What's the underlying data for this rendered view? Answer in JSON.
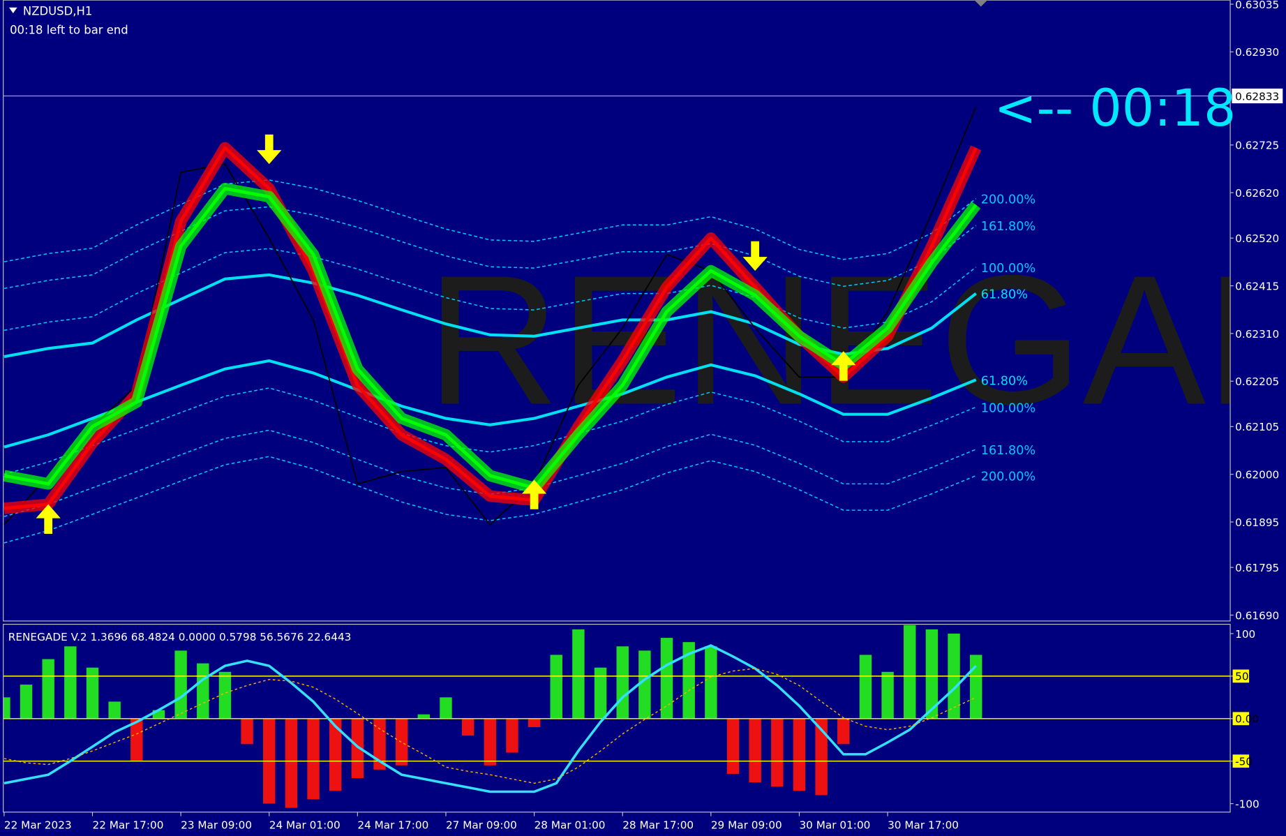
{
  "chart_data": [
    {
      "type": "line",
      "title": "NZDUSD,H1",
      "subtitle": "00:18 left to bar end",
      "annotation": "<-- 00:18",
      "watermark": "RENEGADE",
      "categories": [
        "22 Mar 2023",
        null,
        "22 Mar 17:00",
        null,
        "23 Mar 09:00",
        null,
        "24 Mar 01:00",
        null,
        "24 Mar 17:00",
        null,
        "27 Mar 09:00",
        null,
        "28 Mar 01:00",
        null,
        "28 Mar 17:00",
        null,
        "29 Mar 09:00",
        null,
        "30 Mar 01:00",
        null,
        "30 Mar 17:00",
        null,
        null
      ],
      "ylim": [
        0.61677,
        0.63044
      ],
      "yticks": [
        {
          "value": 0.63035,
          "label": "0.63035"
        },
        {
          "value": 0.6293,
          "label": "0.62930"
        },
        {
          "value": 0.62725,
          "label": "0.62725"
        },
        {
          "value": 0.6262,
          "label": "0.62620"
        },
        {
          "value": 0.6252,
          "label": "0.62520"
        },
        {
          "value": 0.62415,
          "label": "0.62415"
        },
        {
          "value": 0.6231,
          "label": "0.62310"
        },
        {
          "value": 0.62205,
          "label": "0.62205"
        },
        {
          "value": 0.62105,
          "label": "0.62105"
        },
        {
          "value": 0.62,
          "label": "0.62000"
        },
        {
          "value": 0.61895,
          "label": "0.61895"
        },
        {
          "value": 0.61795,
          "label": "0.61795"
        },
        {
          "value": 0.6169,
          "label": "0.61690"
        }
      ],
      "current_price": {
        "value": 0.62833,
        "label": "0.62833"
      },
      "series": [
        {
          "name": "200.00%",
          "color": "#00c8ff",
          "kind": "dashed",
          "values": [
            0.62468,
            0.62486,
            0.62498,
            0.62549,
            0.62594,
            0.62639,
            0.62648,
            0.6263,
            0.62603,
            0.62571,
            0.6254,
            0.62516,
            0.62513,
            0.62531,
            0.62549,
            0.62549,
            0.62567,
            0.6254,
            0.62495,
            0.62473,
            0.62486,
            0.62531,
            0.62607
          ]
        },
        {
          "name": "161.80%",
          "color": "#00c8ff",
          "kind": "dashed",
          "values": [
            0.62409,
            0.62427,
            0.62439,
            0.6249,
            0.62535,
            0.6258,
            0.62589,
            0.62571,
            0.62544,
            0.62512,
            0.62481,
            0.62457,
            0.62454,
            0.62472,
            0.6249,
            0.6249,
            0.62508,
            0.62481,
            0.62436,
            0.62414,
            0.62427,
            0.62472,
            0.62548
          ]
        },
        {
          "name": "100.00%",
          "color": "#00c8ff",
          "kind": "dashed",
          "values": [
            0.62317,
            0.62335,
            0.62347,
            0.62398,
            0.62443,
            0.62488,
            0.62497,
            0.62479,
            0.62452,
            0.6242,
            0.62389,
            0.62365,
            0.62362,
            0.6238,
            0.62398,
            0.62398,
            0.62416,
            0.62389,
            0.62344,
            0.62322,
            0.62335,
            0.6238,
            0.62456
          ]
        },
        {
          "name": "61.80%",
          "color": "#00e0f0",
          "kind": "thick",
          "values": [
            0.62259,
            0.62277,
            0.62289,
            0.6234,
            0.62385,
            0.6243,
            0.62439,
            0.62421,
            0.62394,
            0.62362,
            0.62331,
            0.62307,
            0.62304,
            0.62322,
            0.6234,
            0.6234,
            0.62358,
            0.62331,
            0.62286,
            0.62264,
            0.62277,
            0.62322,
            0.62398
          ]
        },
        {
          "name": "61.80%",
          "color": "#00e0f0",
          "kind": "thick",
          "values": [
            0.6206,
            0.62087,
            0.62123,
            0.62159,
            0.62196,
            0.62232,
            0.6225,
            0.62223,
            0.62186,
            0.6215,
            0.62123,
            0.62109,
            0.62123,
            0.6215,
            0.62177,
            0.62214,
            0.62241,
            0.62217,
            0.62177,
            0.62132,
            0.62132,
            0.62168,
            0.62208
          ]
        },
        {
          "name": "100.00%",
          "color": "#00c8ff",
          "kind": "dashed",
          "values": [
            0.62,
            0.62027,
            0.62063,
            0.62099,
            0.62136,
            0.62172,
            0.6219,
            0.62163,
            0.62126,
            0.6209,
            0.62063,
            0.62049,
            0.62063,
            0.6209,
            0.62117,
            0.62154,
            0.62181,
            0.62157,
            0.62117,
            0.62072,
            0.62072,
            0.62108,
            0.62148
          ]
        },
        {
          "name": "161.80%",
          "color": "#00c8ff",
          "kind": "dashed",
          "values": [
            0.61907,
            0.61934,
            0.6197,
            0.62006,
            0.62043,
            0.62079,
            0.62097,
            0.6207,
            0.62033,
            0.61997,
            0.6197,
            0.61956,
            0.6197,
            0.61997,
            0.62024,
            0.62061,
            0.62088,
            0.62064,
            0.62024,
            0.61979,
            0.61979,
            0.62015,
            0.62055
          ]
        },
        {
          "name": "200.00%",
          "color": "#00c8ff",
          "kind": "dashed",
          "values": [
            0.61849,
            0.61876,
            0.61912,
            0.61948,
            0.61985,
            0.62021,
            0.62039,
            0.62012,
            0.61975,
            0.61939,
            0.61912,
            0.61898,
            0.61912,
            0.61939,
            0.61966,
            0.62003,
            0.6203,
            0.62006,
            0.61966,
            0.61921,
            0.61921,
            0.61957,
            0.61997
          ]
        },
        {
          "color": "#000000",
          "kind": "price",
          "values": [
            0.61889,
            0.61997,
            0.62105,
            0.62196,
            0.62665,
            0.62683,
            0.6252,
            0.6234,
            0.61979,
            0.62006,
            0.62015,
            0.61889,
            0.61979,
            0.62196,
            0.62322,
            0.62484,
            0.62448,
            0.62322,
            0.62214,
            0.62214,
            0.62358,
            0.62575,
            0.62809
          ]
        },
        {
          "color": "#ff0000",
          "kind": "ribbon",
          "values": [
            0.61925,
            0.61934,
            0.62069,
            0.62177,
            0.62557,
            0.62719,
            0.62629,
            0.62448,
            0.62196,
            0.62087,
            0.62033,
            0.61952,
            0.61943,
            0.62105,
            0.6225,
            0.62412,
            0.6252,
            0.62412,
            0.62304,
            0.62214,
            0.62304,
            0.62502,
            0.62719
          ]
        },
        {
          "color": "#00ff00",
          "kind": "ribbon",
          "values": [
            0.61997,
            0.61979,
            0.62105,
            0.62159,
            0.62502,
            0.62629,
            0.62611,
            0.62484,
            0.62232,
            0.62123,
            0.62087,
            0.61997,
            0.6197,
            0.62087,
            0.62196,
            0.62358,
            0.62448,
            0.62394,
            0.62304,
            0.62241,
            0.62322,
            0.62466,
            0.62593
          ]
        },
        {
          "color": "#ffff00",
          "kind": "arrow-up",
          "values": [
            null,
            0.61934,
            null,
            null,
            null,
            null,
            null,
            null,
            null,
            null,
            null,
            null,
            0.61988,
            null,
            null,
            null,
            null,
            null,
            null,
            0.62271,
            null,
            null,
            null
          ]
        },
        {
          "color": "#ffff00",
          "kind": "arrow-down",
          "values": [
            null,
            null,
            null,
            null,
            null,
            null,
            0.62683,
            null,
            null,
            null,
            null,
            null,
            null,
            null,
            null,
            null,
            null,
            0.62448,
            null,
            null,
            null,
            null,
            null
          ]
        }
      ]
    },
    {
      "type": "bar",
      "title": "RENEGADE V.2 1.3696 68.4824 0.0000 0.5798 56.5676 22.6443",
      "ylim": [
        -110,
        110
      ],
      "yticks": [
        100,
        50,
        {
          "value": 0,
          "label": "0.00"
        },
        -50,
        -100
      ],
      "levels": [
        50,
        0,
        -50
      ],
      "level_color": "#ffff00",
      "positive_color": "#22dd22",
      "negative_color": "#ee1111",
      "values": [
        25,
        40,
        70,
        85,
        60,
        20,
        -50,
        10,
        80,
        65,
        55,
        -30,
        -100,
        -105,
        -95,
        -85,
        -70,
        -60,
        -55,
        5,
        25,
        -20,
        -55,
        -40,
        -10,
        75,
        105,
        60,
        85,
        80,
        95,
        90,
        85,
        -65,
        -75,
        -80,
        -85,
        -90,
        -30,
        75,
        55,
        110,
        105,
        100,
        75
      ],
      "series": [
        {
          "color": "#33e0ff",
          "kind": "solid",
          "values": [
            -76,
            -71,
            -66,
            -50,
            -33,
            -16,
            -4,
            10,
            25,
            46,
            62,
            68,
            62,
            42,
            20,
            -9,
            -33,
            -50,
            -66,
            -71,
            -76,
            -81,
            -86,
            -86,
            -86,
            -76,
            -38,
            -4,
            25,
            46,
            63,
            76,
            86,
            73,
            59,
            39,
            15,
            -13,
            -42,
            -42,
            -28,
            -13,
            11,
            35,
            62
          ]
        },
        {
          "color": "#ffb000",
          "kind": "dashed",
          "values": [
            -47,
            -52,
            -54,
            -47,
            -38,
            -28,
            -18,
            -6,
            6,
            18,
            30,
            39,
            46,
            44,
            37,
            23,
            6,
            -12,
            -28,
            -42,
            -57,
            -62,
            -66,
            -71,
            -76,
            -71,
            -57,
            -38,
            -18,
            -1,
            15,
            33,
            49,
            56,
            59,
            52,
            39,
            20,
            1,
            -9,
            -13,
            -9,
            1,
            13,
            25
          ]
        }
      ]
    }
  ]
}
